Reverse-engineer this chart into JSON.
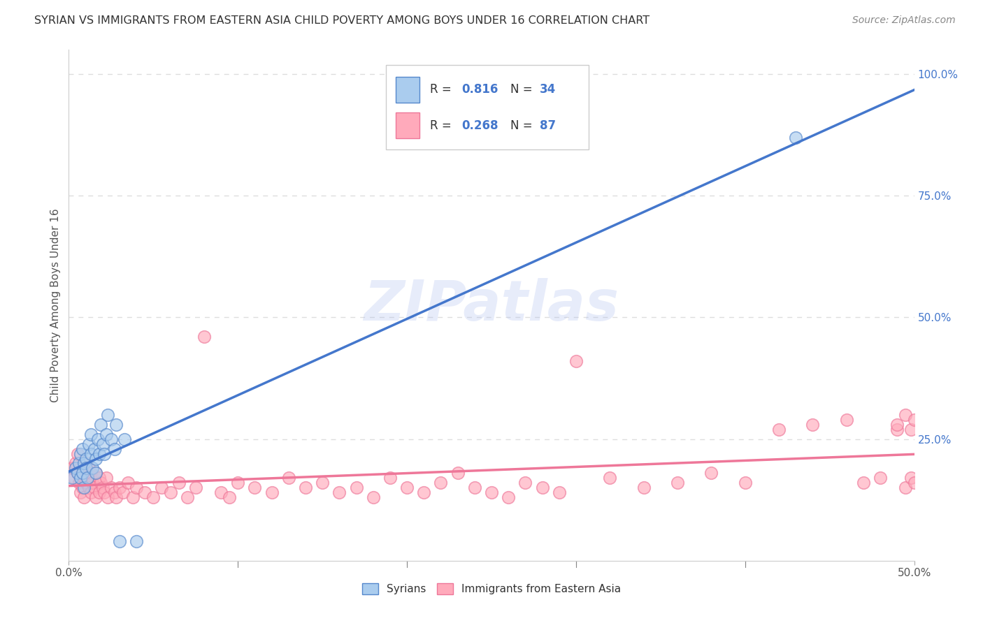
{
  "title": "SYRIAN VS IMMIGRANTS FROM EASTERN ASIA CHILD POVERTY AMONG BOYS UNDER 16 CORRELATION CHART",
  "source": "Source: ZipAtlas.com",
  "ylabel": "Child Poverty Among Boys Under 16",
  "xlim": [
    0.0,
    0.5
  ],
  "ylim": [
    0.0,
    1.05
  ],
  "color_blue": "#AACCEE",
  "color_blue_edge": "#5588CC",
  "color_blue_line": "#4477CC",
  "color_pink": "#FFAABB",
  "color_pink_edge": "#EE7799",
  "color_pink_line": "#EE7799",
  "watermark": "ZIPatlas",
  "background_color": "#FFFFFF",
  "grid_color": "#DDDDDD",
  "legend_r1": "0.816",
  "legend_n1": "34",
  "legend_r2": "0.268",
  "legend_n2": "87",
  "syr_x": [
    0.002,
    0.004,
    0.005,
    0.006,
    0.007,
    0.007,
    0.008,
    0.008,
    0.009,
    0.009,
    0.01,
    0.01,
    0.011,
    0.012,
    0.013,
    0.013,
    0.014,
    0.015,
    0.016,
    0.016,
    0.017,
    0.018,
    0.019,
    0.02,
    0.021,
    0.022,
    0.023,
    0.025,
    0.027,
    0.028,
    0.03,
    0.033,
    0.04,
    0.43
  ],
  "syr_y": [
    0.17,
    0.19,
    0.18,
    0.2,
    0.22,
    0.17,
    0.23,
    0.18,
    0.2,
    0.15,
    0.21,
    0.19,
    0.17,
    0.24,
    0.22,
    0.26,
    0.19,
    0.23,
    0.21,
    0.18,
    0.25,
    0.22,
    0.28,
    0.24,
    0.22,
    0.26,
    0.3,
    0.25,
    0.23,
    0.28,
    0.04,
    0.25,
    0.04,
    0.87
  ],
  "ea_x": [
    0.002,
    0.003,
    0.004,
    0.005,
    0.005,
    0.006,
    0.007,
    0.007,
    0.008,
    0.008,
    0.009,
    0.009,
    0.01,
    0.01,
    0.011,
    0.012,
    0.012,
    0.013,
    0.013,
    0.014,
    0.015,
    0.016,
    0.016,
    0.018,
    0.018,
    0.019,
    0.02,
    0.021,
    0.022,
    0.023,
    0.025,
    0.027,
    0.028,
    0.03,
    0.032,
    0.035,
    0.038,
    0.04,
    0.045,
    0.05,
    0.055,
    0.06,
    0.065,
    0.07,
    0.075,
    0.08,
    0.09,
    0.095,
    0.1,
    0.11,
    0.12,
    0.13,
    0.14,
    0.15,
    0.16,
    0.17,
    0.18,
    0.19,
    0.2,
    0.21,
    0.22,
    0.23,
    0.24,
    0.25,
    0.26,
    0.27,
    0.28,
    0.29,
    0.3,
    0.32,
    0.34,
    0.36,
    0.38,
    0.4,
    0.42,
    0.44,
    0.46,
    0.47,
    0.48,
    0.49,
    0.49,
    0.495,
    0.495,
    0.498,
    0.498,
    0.5,
    0.5
  ],
  "ea_y": [
    0.19,
    0.17,
    0.2,
    0.18,
    0.22,
    0.16,
    0.19,
    0.14,
    0.18,
    0.15,
    0.17,
    0.13,
    0.2,
    0.16,
    0.17,
    0.15,
    0.19,
    0.14,
    0.18,
    0.16,
    0.15,
    0.18,
    0.13,
    0.17,
    0.14,
    0.16,
    0.15,
    0.14,
    0.17,
    0.13,
    0.15,
    0.14,
    0.13,
    0.15,
    0.14,
    0.16,
    0.13,
    0.15,
    0.14,
    0.13,
    0.15,
    0.14,
    0.16,
    0.13,
    0.15,
    0.46,
    0.14,
    0.13,
    0.16,
    0.15,
    0.14,
    0.17,
    0.15,
    0.16,
    0.14,
    0.15,
    0.13,
    0.17,
    0.15,
    0.14,
    0.16,
    0.18,
    0.15,
    0.14,
    0.13,
    0.16,
    0.15,
    0.14,
    0.41,
    0.17,
    0.15,
    0.16,
    0.18,
    0.16,
    0.27,
    0.28,
    0.29,
    0.16,
    0.17,
    0.27,
    0.28,
    0.15,
    0.3,
    0.17,
    0.27,
    0.16,
    0.29
  ]
}
